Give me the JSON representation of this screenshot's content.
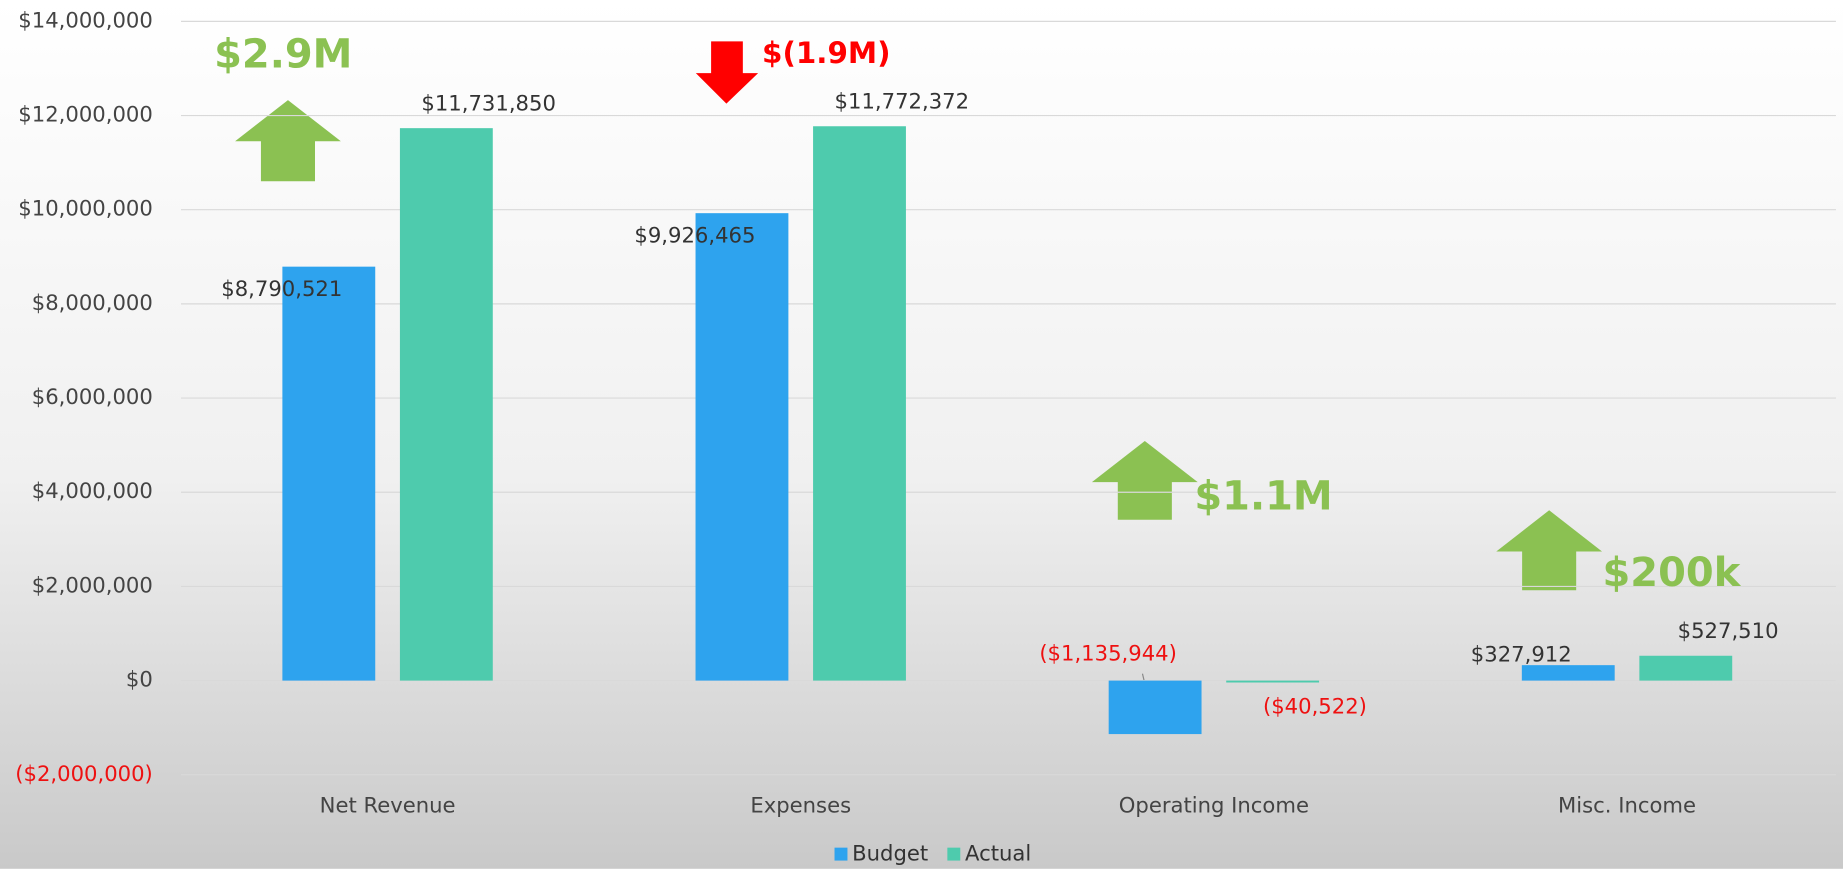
{
  "chart_data": {
    "type": "bar",
    "categories": [
      "Net Revenue",
      "Expenses",
      "Operating Income",
      "Misc. Income"
    ],
    "series": [
      {
        "name": "Budget",
        "color": "#2ea3ee",
        "values": [
          8790521,
          9926465,
          -1135944,
          327912
        ],
        "value_labels": [
          "$8,790,521",
          "$9,926,465",
          "($1,135,944)",
          "$327,912"
        ]
      },
      {
        "name": "Actual",
        "color": "#4ecbad",
        "values": [
          11731850,
          11772372,
          -40522,
          527510
        ],
        "value_labels": [
          "$11,731,850",
          "$11,772,372",
          "($40,522)",
          "$527,510"
        ]
      }
    ],
    "ylim": [
      -2000000,
      14000000
    ],
    "yticks": [
      {
        "value": -2000000,
        "label": "($2,000,000)"
      },
      {
        "value": 0,
        "label": "$0"
      },
      {
        "value": 2000000,
        "label": "$2,000,000"
      },
      {
        "value": 4000000,
        "label": "$4,000,000"
      },
      {
        "value": 6000000,
        "label": "$6,000,000"
      },
      {
        "value": 8000000,
        "label": "$8,000,000"
      },
      {
        "value": 10000000,
        "label": "$10,000,000"
      },
      {
        "value": 12000000,
        "label": "$12,000,000"
      },
      {
        "value": 14000000,
        "label": "$14,000,000"
      }
    ],
    "grid": true,
    "negative_color": "#ee1111",
    "legend": "bottom",
    "annotations": [
      {
        "text": "$2.9M",
        "color": "#8bc152"
      },
      {
        "text": "$(1.9M)",
        "color": "#ff0000"
      },
      {
        "text": "$1.1M",
        "color": "#8bc152"
      },
      {
        "text": "$200k",
        "color": "#8bc152"
      }
    ]
  }
}
